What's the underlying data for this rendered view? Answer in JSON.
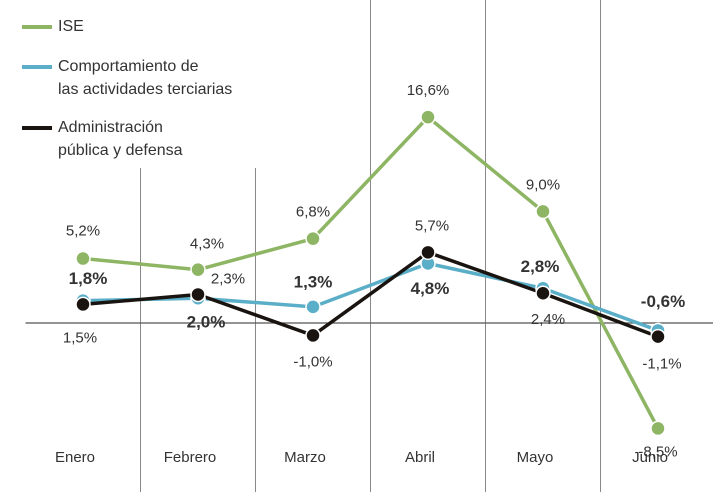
{
  "chart_data": {
    "type": "line",
    "categories": [
      "Enero",
      "Febrero",
      "Marzo",
      "Abril",
      "Mayo",
      "Junio"
    ],
    "series": [
      {
        "name": "ISE",
        "color": "#8db563",
        "values": [
          5.2,
          4.3,
          6.8,
          16.6,
          9.0,
          -8.5
        ],
        "value_labels": [
          "5,2%",
          "4,3%",
          "6,8%",
          "16,6%",
          "9,0%",
          "-8,5%"
        ]
      },
      {
        "name": "Comportamiento de las actividades terciarias",
        "color": "#5aaec7",
        "values": [
          1.8,
          2.0,
          1.3,
          4.8,
          2.8,
          -0.6
        ],
        "value_labels": [
          "1,8%",
          "2,0%",
          "1,3%",
          "4,8%",
          "2,8%",
          "-0,6%"
        ]
      },
      {
        "name": "Administración pública y defensa",
        "color": "#1a1410",
        "values": [
          1.5,
          2.3,
          -1.0,
          5.7,
          2.4,
          -1.1
        ],
        "value_labels": [
          "1,5%",
          "2,3%",
          "-1,0%",
          "5,7%",
          "2,4%",
          "-1,1%"
        ]
      }
    ],
    "ylim": [
      -10,
      26
    ]
  }
}
